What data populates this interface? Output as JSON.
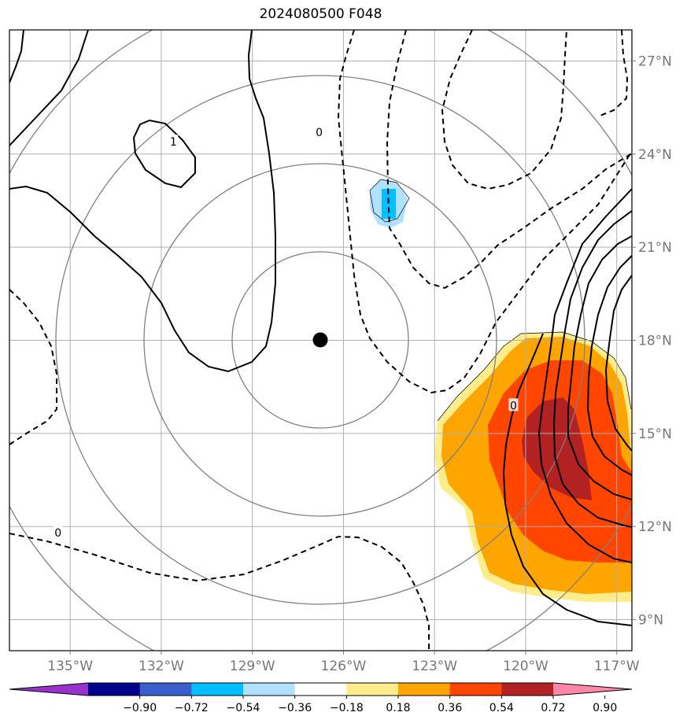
{
  "title": "2024080500 F048",
  "map": {
    "lon_range": [
      -137,
      -116.5
    ],
    "lat_range": [
      8,
      28
    ],
    "lon_ticks": [
      {
        "value": -135,
        "label": "135°W"
      },
      {
        "value": -132,
        "label": "132°W"
      },
      {
        "value": -129,
        "label": "129°W"
      },
      {
        "value": -126,
        "label": "126°W"
      },
      {
        "value": -123,
        "label": "123°W"
      },
      {
        "value": -120,
        "label": "120°W"
      },
      {
        "value": -117,
        "label": "117°W"
      }
    ],
    "lat_ticks": [
      {
        "value": 9,
        "label": "9°N"
      },
      {
        "value": 12,
        "label": "12°N"
      },
      {
        "value": 15,
        "label": "15°N"
      },
      {
        "value": 18,
        "label": "18°N"
      },
      {
        "value": 21,
        "label": "21°N"
      },
      {
        "value": 24,
        "label": "24°N"
      },
      {
        "value": 27,
        "label": "27°N"
      }
    ],
    "center": {
      "lon": -126.5,
      "lat": 18.1
    },
    "contour_labels": [
      {
        "text": "0",
        "lon": -126.8,
        "lat": 24.7
      },
      {
        "text": "1",
        "lon": -131.6,
        "lat": 24.4
      },
      {
        "text": "0",
        "lon": -120.4,
        "lat": 15.9
      },
      {
        "text": "0",
        "lon": -135.4,
        "lat": 11.8
      }
    ]
  },
  "colorbar": {
    "ticks": [
      "−0.90",
      "−0.72",
      "−0.54",
      "−0.36",
      "−0.18",
      "0.18",
      "0.36",
      "0.54",
      "0.72",
      "0.90"
    ],
    "colors": [
      "#9932cc",
      "#00008b",
      "#3a5fcd",
      "#00bfff",
      "#b0e2ff",
      "#ffffff",
      "#ffec8b",
      "#ffa500",
      "#ff4500",
      "#b22222",
      "#ff88aa"
    ]
  }
}
